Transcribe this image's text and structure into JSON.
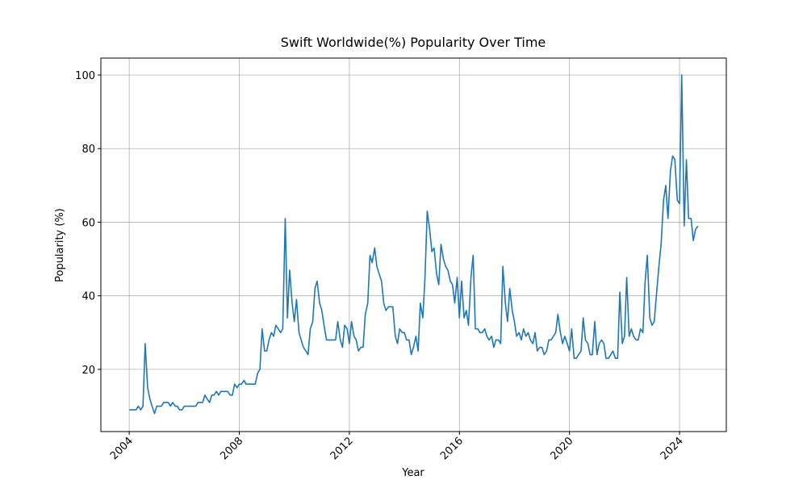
{
  "chart_data": {
    "type": "line",
    "title": "Swift Worldwide(%) Popularity Over Time",
    "x_label": "Year",
    "y_label": "Popularity (%)",
    "x": [
      2004,
      2004.08,
      2004.17,
      2004.25,
      2004.33,
      2004.42,
      2004.5,
      2004.58,
      2004.67,
      2004.75,
      2004.83,
      2004.92,
      2005,
      2005.08,
      2005.17,
      2005.25,
      2005.33,
      2005.42,
      2005.5,
      2005.58,
      2005.67,
      2005.75,
      2005.83,
      2005.92,
      2006,
      2006.08,
      2006.17,
      2006.25,
      2006.33,
      2006.42,
      2006.5,
      2006.58,
      2006.67,
      2006.75,
      2006.83,
      2006.92,
      2007,
      2007.08,
      2007.17,
      2007.25,
      2007.33,
      2007.42,
      2007.5,
      2007.58,
      2007.67,
      2007.75,
      2007.83,
      2007.92,
      2008,
      2008.08,
      2008.17,
      2008.25,
      2008.33,
      2008.42,
      2008.5,
      2008.58,
      2008.67,
      2008.75,
      2008.83,
      2008.92,
      2009,
      2009.08,
      2009.17,
      2009.25,
      2009.33,
      2009.42,
      2009.5,
      2009.58,
      2009.67,
      2009.75,
      2009.83,
      2009.92,
      2010,
      2010.08,
      2010.17,
      2010.25,
      2010.33,
      2010.42,
      2010.5,
      2010.58,
      2010.67,
      2010.75,
      2010.83,
      2010.92,
      2011,
      2011.08,
      2011.17,
      2011.25,
      2011.33,
      2011.42,
      2011.5,
      2011.58,
      2011.67,
      2011.75,
      2011.83,
      2011.92,
      2012,
      2012.08,
      2012.17,
      2012.25,
      2012.33,
      2012.42,
      2012.5,
      2012.58,
      2012.67,
      2012.75,
      2012.83,
      2012.92,
      2013,
      2013.08,
      2013.17,
      2013.25,
      2013.33,
      2013.42,
      2013.5,
      2013.58,
      2013.67,
      2013.75,
      2013.83,
      2013.92,
      2014,
      2014.08,
      2014.17,
      2014.25,
      2014.33,
      2014.42,
      2014.5,
      2014.58,
      2014.67,
      2014.75,
      2014.83,
      2014.92,
      2015,
      2015.08,
      2015.17,
      2015.25,
      2015.33,
      2015.42,
      2015.5,
      2015.58,
      2015.67,
      2015.75,
      2015.83,
      2015.92,
      2016,
      2016.08,
      2016.17,
      2016.25,
      2016.33,
      2016.42,
      2016.5,
      2016.58,
      2016.67,
      2016.75,
      2016.83,
      2016.92,
      2017,
      2017.08,
      2017.17,
      2017.25,
      2017.33,
      2017.42,
      2017.5,
      2017.58,
      2017.67,
      2017.75,
      2017.83,
      2017.92,
      2018,
      2018.08,
      2018.17,
      2018.25,
      2018.33,
      2018.42,
      2018.5,
      2018.58,
      2018.67,
      2018.75,
      2018.83,
      2018.92,
      2019,
      2019.08,
      2019.17,
      2019.25,
      2019.33,
      2019.42,
      2019.5,
      2019.58,
      2019.67,
      2019.75,
      2019.83,
      2019.92,
      2020,
      2020.08,
      2020.17,
      2020.25,
      2020.33,
      2020.42,
      2020.5,
      2020.58,
      2020.67,
      2020.75,
      2020.83,
      2020.92,
      2021,
      2021.08,
      2021.17,
      2021.25,
      2021.33,
      2021.42,
      2021.5,
      2021.58,
      2021.67,
      2021.75,
      2021.83,
      2021.92,
      2022,
      2022.08,
      2022.17,
      2022.25,
      2022.33,
      2022.42,
      2022.5,
      2022.58,
      2022.67,
      2022.75,
      2022.83,
      2022.92,
      2023,
      2023.08,
      2023.17,
      2023.25,
      2023.33,
      2023.42,
      2023.5,
      2023.58,
      2023.67,
      2023.75,
      2023.83,
      2023.92,
      2024,
      2024.08,
      2024.17,
      2024.25,
      2024.33,
      2024.42,
      2024.5,
      2024.58,
      2024.67
    ],
    "series": [
      {
        "name": "Swift",
        "color": "#1f77b4",
        "values": [
          9,
          9,
          9,
          9,
          10,
          9,
          10,
          27,
          15,
          12,
          10,
          8,
          10,
          10,
          10,
          11,
          11,
          11,
          10,
          11,
          10,
          10,
          9,
          9,
          10,
          10,
          10,
          10,
          10,
          10,
          11,
          11,
          11,
          13,
          12,
          11,
          13,
          13,
          14,
          13,
          14,
          14,
          14,
          14,
          13,
          13,
          16,
          15,
          16,
          16,
          17,
          16,
          16,
          16,
          16,
          16,
          19,
          20,
          31,
          25,
          25,
          28,
          30,
          29,
          32,
          31,
          30,
          31,
          61,
          34,
          47,
          38,
          33,
          39,
          30,
          28,
          26,
          25,
          24,
          31,
          33,
          42,
          44,
          38,
          36,
          32,
          28,
          28,
          28,
          28,
          28,
          33,
          28,
          26,
          32,
          31,
          27,
          33,
          29,
          28,
          25,
          26,
          26,
          35,
          38,
          51,
          49,
          53,
          48,
          46,
          44,
          38,
          36,
          37,
          37,
          37,
          29,
          27,
          31,
          30,
          30,
          28,
          28,
          24,
          26,
          29,
          25,
          38,
          34,
          45,
          63,
          58,
          52,
          53,
          46,
          43,
          54,
          50,
          48,
          47,
          44,
          43,
          38,
          45,
          34,
          44,
          34,
          36,
          32,
          45,
          51,
          31,
          31,
          30,
          30,
          31,
          29,
          28,
          29,
          26,
          28,
          28,
          27,
          48,
          38,
          33,
          42,
          36,
          33,
          29,
          30,
          28,
          31,
          29,
          30,
          28,
          27,
          30,
          25,
          26,
          26,
          24,
          25,
          28,
          28,
          29,
          30,
          35,
          30,
          27,
          29,
          27,
          25,
          31,
          23,
          23,
          24,
          25,
          34,
          28,
          27,
          24,
          24,
          33,
          24,
          27,
          28,
          27,
          23,
          23,
          24,
          25,
          23,
          23,
          41,
          27,
          29,
          45,
          29,
          31,
          29,
          28,
          28,
          31,
          30,
          44,
          51,
          34,
          32,
          33,
          41,
          48,
          54,
          66,
          70,
          61,
          74,
          78,
          77,
          66,
          65,
          100,
          59,
          77,
          61,
          61,
          55,
          58,
          59
        ]
      }
    ],
    "xlim": [
      2002.97,
      2025.7
    ],
    "ylim": [
      3.1,
      104.6
    ],
    "xticks": [
      2004,
      2008,
      2012,
      2016,
      2020,
      2024
    ],
    "yticks": [
      20,
      40,
      60,
      80,
      100
    ],
    "grid": true
  }
}
